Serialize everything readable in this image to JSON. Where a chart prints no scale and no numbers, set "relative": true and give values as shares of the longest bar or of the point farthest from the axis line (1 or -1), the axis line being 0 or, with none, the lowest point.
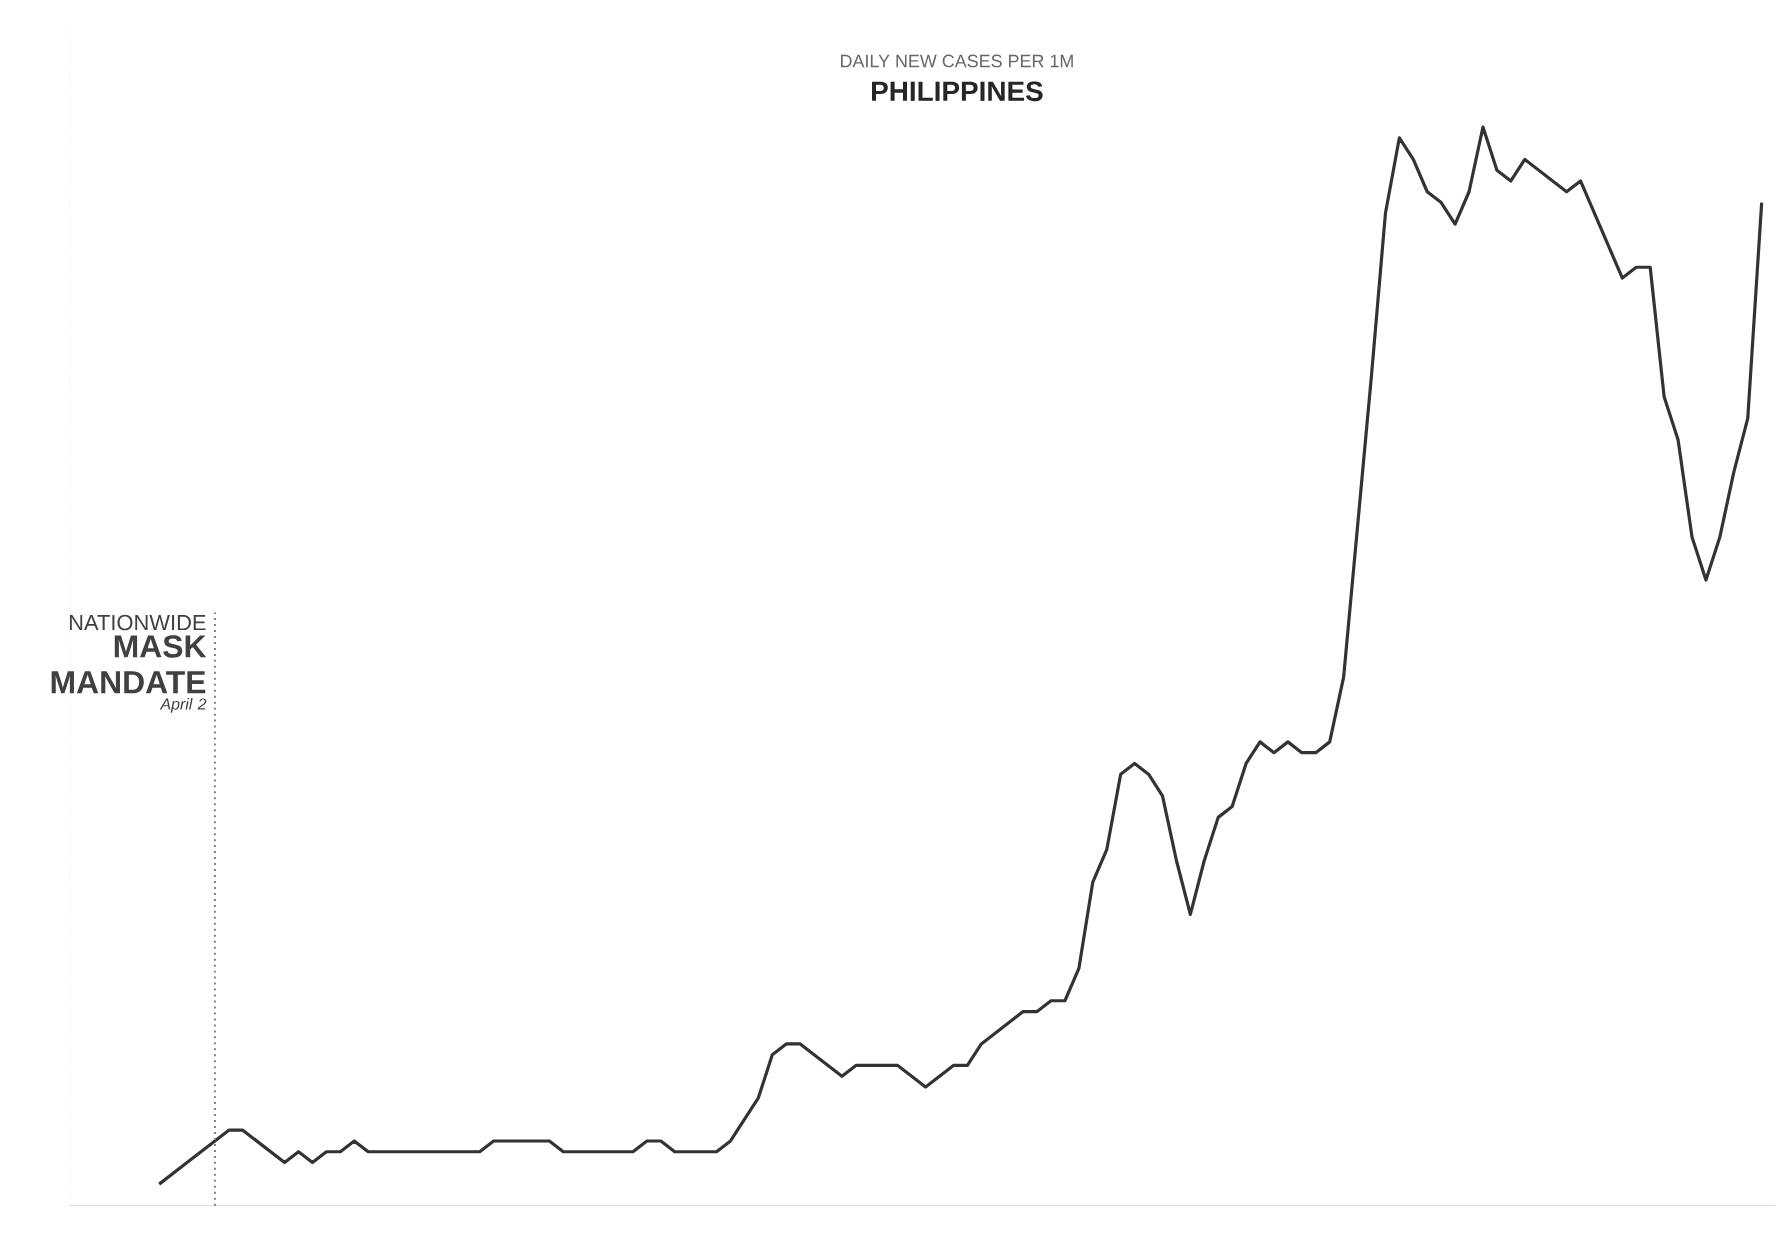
{
  "chart_data": {
    "type": "line",
    "title": "DAILY NEW CASES PER 1M",
    "subtitle": "PHILIPPINES",
    "relative": true,
    "categories": [
      null,
      null,
      null,
      null,
      null,
      null,
      null,
      null,
      null,
      null,
      null,
      null,
      null,
      null,
      null,
      null,
      null,
      null,
      null,
      null,
      null,
      null,
      null,
      null,
      null,
      null,
      null,
      null,
      null,
      null,
      null,
      null,
      null,
      null,
      null,
      null,
      null,
      null,
      null,
      null,
      null,
      null,
      null,
      null,
      null,
      null,
      null,
      null,
      null,
      null,
      null,
      null,
      null,
      null,
      null,
      null,
      null,
      null,
      null,
      null,
      null,
      null,
      null,
      null,
      null,
      null,
      null,
      null,
      null,
      null,
      null,
      null,
      null,
      null,
      null,
      null,
      null,
      null,
      null,
      null,
      null,
      null,
      null,
      null,
      null,
      null,
      null,
      null,
      null,
      null,
      null,
      null,
      null,
      null,
      null,
      null,
      null,
      null,
      null,
      null,
      null,
      null,
      null,
      null,
      null,
      null,
      null,
      null,
      null,
      null,
      null,
      null,
      null,
      null,
      null,
      null
    ],
    "series": [
      {
        "color": "#333333",
        "values": [
          0.02,
          0.03,
          0.04,
          0.05,
          0.06,
          0.07,
          0.07,
          0.06,
          0.05,
          0.04,
          0.05,
          0.04,
          0.05,
          0.05,
          0.06,
          0.05,
          0.05,
          0.05,
          0.05,
          0.05,
          0.05,
          0.05,
          0.05,
          0.05,
          0.06,
          0.06,
          0.06,
          0.06,
          0.06,
          0.05,
          0.05,
          0.05,
          0.05,
          0.05,
          0.05,
          0.06,
          0.06,
          0.05,
          0.05,
          0.05,
          0.05,
          0.06,
          0.08,
          0.1,
          0.14,
          0.15,
          0.15,
          0.14,
          0.13,
          0.12,
          0.13,
          0.13,
          0.13,
          0.13,
          0.12,
          0.11,
          0.12,
          0.13,
          0.13,
          0.15,
          0.16,
          0.17,
          0.18,
          0.18,
          0.19,
          0.19,
          0.22,
          0.3,
          0.33,
          0.4,
          0.41,
          0.4,
          0.38,
          0.32,
          0.27,
          0.32,
          0.36,
          0.37,
          0.41,
          0.43,
          0.42,
          0.43,
          0.42,
          0.42,
          0.43,
          0.49,
          0.63,
          0.77,
          0.92,
          0.99,
          0.97,
          0.94,
          0.93,
          0.91,
          0.94,
          1,
          0.96,
          0.95,
          0.97,
          0.96,
          0.95,
          0.94,
          0.95,
          0.92,
          0.89,
          0.86,
          0.87,
          0.87,
          0.75,
          0.71,
          0.62,
          0.58,
          0.62,
          0.68,
          0.73,
          0.93
        ]
      }
    ],
    "marker": "none",
    "line_style": "solid",
    "annotations": [
      "NATIONWIDE",
      "MASK MANDATE",
      "April 2"
    ]
  }
}
